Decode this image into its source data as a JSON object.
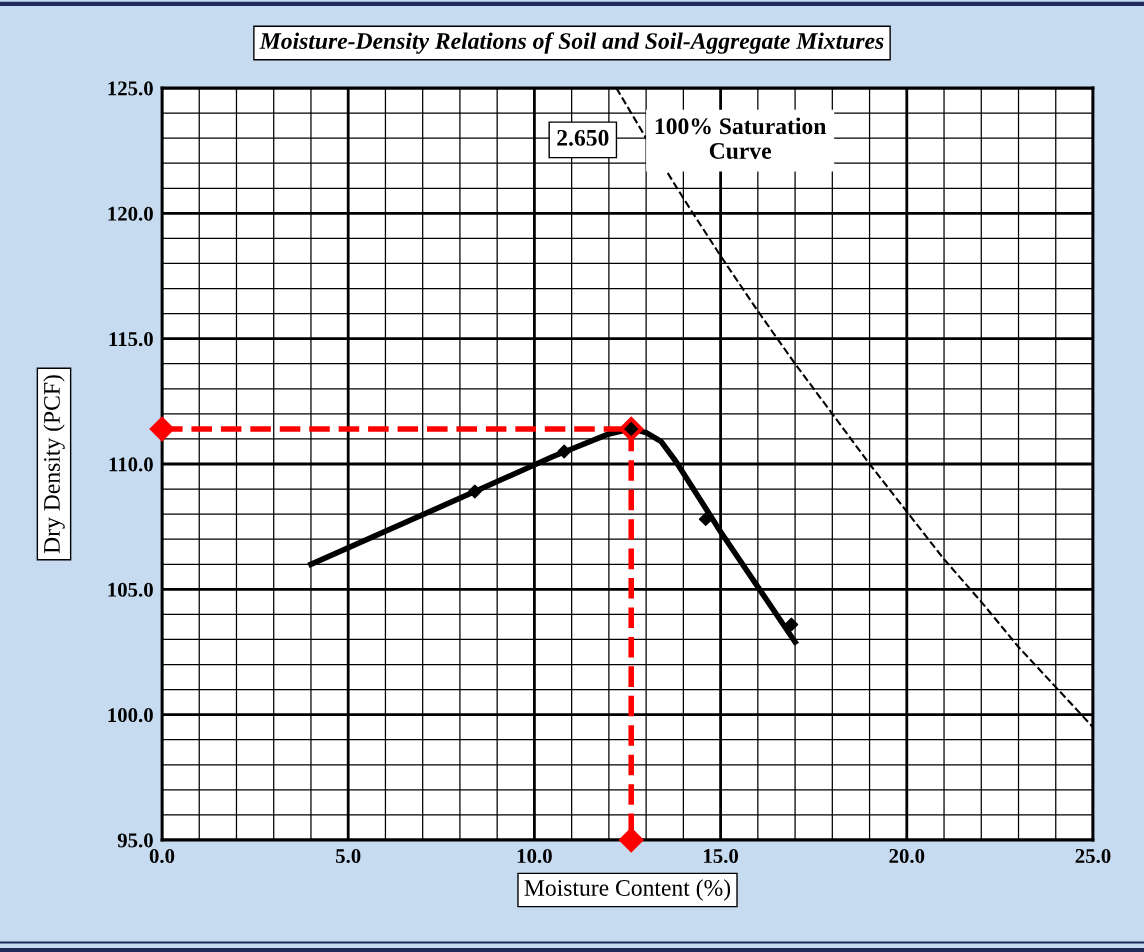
{
  "chart_data": {
    "type": "line",
    "title": "Moisture-Density Relations of Soil and Soil-Aggregate Mixtures",
    "xlabel": "Moisture Content (%)",
    "ylabel": "Dry Density (PCF)",
    "series": [
      {
        "color": "#000000",
        "line_style": "solid",
        "marker": "none",
        "x": [
          4.0,
          8.4,
          10.5,
          12.0,
          12.6,
          13.0,
          13.4,
          13.8,
          15.0,
          16.0,
          17.0
        ],
        "values": [
          106.0,
          108.9,
          110.3,
          111.2,
          111.4,
          111.25,
          110.9,
          110.1,
          107.3,
          105.1,
          102.9
        ]
      },
      {
        "type": "scatter",
        "color": "#000000",
        "marker": "diamond",
        "x": [
          8.4,
          10.8,
          12.6,
          14.6,
          16.9
        ],
        "values": [
          108.9,
          110.5,
          111.4,
          107.8,
          103.6
        ]
      },
      {
        "color": "#ff0000",
        "line_style": "dashed",
        "marker": "diamond",
        "x": [
          0.0,
          12.6,
          12.6
        ],
        "values": [
          111.4,
          111.4,
          95.0
        ]
      },
      {
        "color": "#000000",
        "line_style": "dashed",
        "marker": "none",
        "x": [
          12.2,
          13,
          14,
          15,
          16,
          17,
          18,
          19,
          20,
          21,
          22,
          23,
          24,
          25
        ],
        "values": [
          125.0,
          123.0,
          120.6,
          118.3,
          116.1,
          114.0,
          112.0,
          110.0,
          108.1,
          106.2,
          104.5,
          102.7,
          101.1,
          99.5
        ]
      }
    ],
    "annotations": [
      "2.650",
      "100% Saturation\nCurve"
    ],
    "xlim": [
      0,
      25
    ],
    "ylim": [
      95,
      125
    ],
    "xticks": [
      {
        "value": 0,
        "label": "0.0"
      },
      {
        "value": 1,
        "label": null
      },
      {
        "value": 2,
        "label": null
      },
      {
        "value": 3,
        "label": null
      },
      {
        "value": 4,
        "label": null
      },
      {
        "value": 5,
        "label": "5.0"
      },
      {
        "value": 6,
        "label": null
      },
      {
        "value": 7,
        "label": null
      },
      {
        "value": 8,
        "label": null
      },
      {
        "value": 9,
        "label": null
      },
      {
        "value": 10,
        "label": "10.0"
      },
      {
        "value": 11,
        "label": null
      },
      {
        "value": 12,
        "label": null
      },
      {
        "value": 13,
        "label": null
      },
      {
        "value": 14,
        "label": null
      },
      {
        "value": 15,
        "label": "15.0"
      },
      {
        "value": 16,
        "label": null
      },
      {
        "value": 17,
        "label": null
      },
      {
        "value": 18,
        "label": null
      },
      {
        "value": 19,
        "label": null
      },
      {
        "value": 20,
        "label": "20.0"
      },
      {
        "value": 21,
        "label": null
      },
      {
        "value": 22,
        "label": null
      },
      {
        "value": 23,
        "label": null
      },
      {
        "value": 24,
        "label": null
      },
      {
        "value": 25,
        "label": "25.0"
      }
    ],
    "yticks": [
      {
        "value": 95,
        "label": "95.0"
      },
      {
        "value": 96,
        "label": null
      },
      {
        "value": 97,
        "label": null
      },
      {
        "value": 98,
        "label": null
      },
      {
        "value": 99,
        "label": null
      },
      {
        "value": 100,
        "label": "100.0"
      },
      {
        "value": 101,
        "label": null
      },
      {
        "value": 102,
        "label": null
      },
      {
        "value": 103,
        "label": null
      },
      {
        "value": 104,
        "label": null
      },
      {
        "value": 105,
        "label": "105.0"
      },
      {
        "value": 106,
        "label": null
      },
      {
        "value": 107,
        "label": null
      },
      {
        "value": 108,
        "label": null
      },
      {
        "value": 109,
        "label": null
      },
      {
        "value": 110,
        "label": "110.0"
      },
      {
        "value": 111,
        "label": null
      },
      {
        "value": 112,
        "label": null
      },
      {
        "value": 113,
        "label": null
      },
      {
        "value": 114,
        "label": null
      },
      {
        "value": 115,
        "label": "115.0"
      },
      {
        "value": 116,
        "label": null
      },
      {
        "value": 117,
        "label": null
      },
      {
        "value": 118,
        "label": null
      },
      {
        "value": 119,
        "label": null
      },
      {
        "value": 120,
        "label": "120.0"
      },
      {
        "value": 121,
        "label": null
      },
      {
        "value": 122,
        "label": null
      },
      {
        "value": 123,
        "label": null
      },
      {
        "value": 124,
        "label": null
      },
      {
        "value": 125,
        "label": "125.0"
      }
    ],
    "grid": true
  }
}
